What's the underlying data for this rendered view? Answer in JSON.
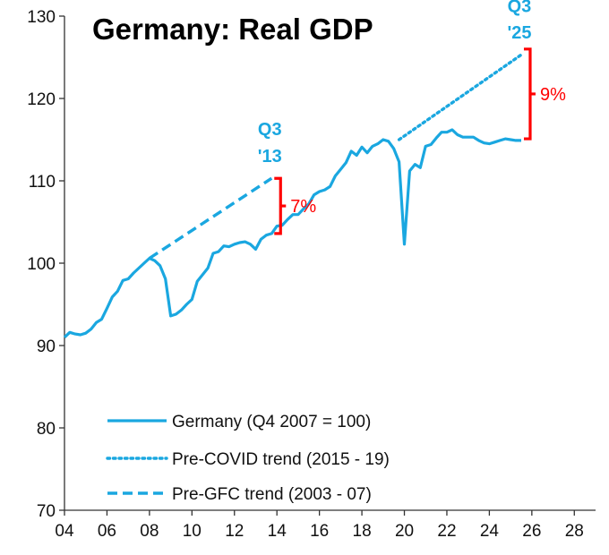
{
  "colors": {
    "series": "#1aa7e0",
    "bracket": "#ff0000",
    "text": "#111111"
  },
  "chart_data": {
    "type": "line",
    "title": "Germany: Real GDP",
    "xlabel": "",
    "ylabel": "",
    "xlim": [
      2004,
      2029
    ],
    "ylim": [
      70,
      130
    ],
    "grid": false,
    "legend_position": "bottom-left",
    "x_tick_values": [
      2004,
      2006,
      2008,
      2010,
      2012,
      2014,
      2016,
      2018,
      2020,
      2022,
      2024,
      2026,
      2028
    ],
    "x_tick_labels": [
      "04",
      "06",
      "08",
      "10",
      "12",
      "14",
      "16",
      "18",
      "20",
      "22",
      "24",
      "26",
      "28"
    ],
    "y_ticks": [
      70,
      80,
      90,
      100,
      110,
      120,
      130
    ],
    "series": [
      {
        "name": "Germany (Q4 2007 = 100)",
        "style": "solid",
        "x": [
          2004.0,
          2004.25,
          2004.5,
          2004.75,
          2005.0,
          2005.25,
          2005.5,
          2005.75,
          2006.0,
          2006.25,
          2006.5,
          2006.75,
          2007.0,
          2007.25,
          2007.5,
          2007.75,
          2008.0,
          2008.25,
          2008.5,
          2008.75,
          2009.0,
          2009.25,
          2009.5,
          2009.75,
          2010.0,
          2010.25,
          2010.5,
          2010.75,
          2011.0,
          2011.25,
          2011.5,
          2011.75,
          2012.0,
          2012.25,
          2012.5,
          2012.75,
          2013.0,
          2013.25,
          2013.5,
          2013.75,
          2014.0,
          2014.25,
          2014.5,
          2014.75,
          2015.0,
          2015.25,
          2015.5,
          2015.75,
          2016.0,
          2016.25,
          2016.5,
          2016.75,
          2017.0,
          2017.25,
          2017.5,
          2017.75,
          2018.0,
          2018.25,
          2018.5,
          2018.75,
          2019.0,
          2019.25,
          2019.5,
          2019.75,
          2020.0,
          2020.25,
          2020.5,
          2020.75,
          2021.0,
          2021.25,
          2021.5,
          2021.75,
          2022.0,
          2022.25,
          2022.5,
          2022.75,
          2023.0,
          2023.25,
          2023.5,
          2023.75,
          2024.0,
          2024.25,
          2024.5,
          2024.75,
          2025.0,
          2025.25,
          2025.5
        ],
        "y": [
          91.0,
          91.6,
          91.4,
          91.3,
          91.5,
          92.0,
          92.8,
          93.2,
          94.5,
          95.9,
          96.6,
          97.9,
          98.1,
          98.8,
          99.4,
          100.0,
          100.6,
          100.3,
          99.7,
          98.1,
          93.6,
          93.8,
          94.3,
          95.0,
          95.6,
          97.8,
          98.6,
          99.4,
          101.2,
          101.4,
          102.1,
          102.0,
          102.3,
          102.5,
          102.6,
          102.3,
          101.7,
          102.9,
          103.4,
          103.6,
          104.5,
          104.6,
          105.3,
          105.9,
          105.9,
          106.6,
          107.2,
          108.3,
          108.7,
          108.9,
          109.3,
          110.6,
          111.4,
          112.2,
          113.6,
          113.1,
          114.1,
          113.4,
          114.2,
          114.5,
          115.0,
          114.8,
          113.9,
          112.3,
          102.3,
          111.2,
          112.0,
          111.6,
          114.2,
          114.4,
          115.2,
          115.9,
          115.9,
          116.2,
          115.6,
          115.3,
          115.3,
          115.3,
          114.9,
          114.6,
          114.5,
          114.7,
          114.9,
          115.1,
          115.0,
          114.9,
          114.9
        ]
      },
      {
        "name": "Pre-COVID trend (2015 - 19)",
        "style": "dotted",
        "x": [
          2019.75,
          2025.5
        ],
        "y": [
          115.0,
          125.3
        ]
      },
      {
        "name": "Pre-GFC trend (2003 - 07)",
        "style": "dashed",
        "x": [
          2008.0,
          2013.75
        ],
        "y": [
          100.6,
          110.3
        ]
      }
    ],
    "annotations": [
      {
        "text_line1": "Q3",
        "text_line2": "'13",
        "x": 2013.75,
        "y": 110.3,
        "gap_label": "7%",
        "gap_low": 103.6,
        "gap_high": 110.3
      },
      {
        "text_line1": "Q3",
        "text_line2": "'25",
        "x": 2025.5,
        "y": 125.3,
        "gap_label": "9%",
        "gap_low": 115.1,
        "gap_high": 126.0
      }
    ]
  }
}
